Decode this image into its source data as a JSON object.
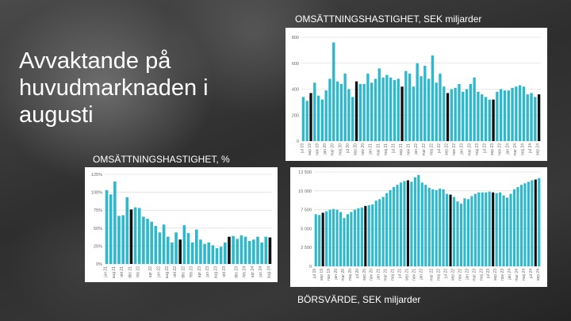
{
  "slide": {
    "title": "Avvaktande på huvudmarknaden i augusti"
  },
  "chart_data": [
    {
      "type": "bar",
      "title": "OMSÄTTNINGSHASTIGHET, SEK miljarder",
      "ylim": [
        0,
        800
      ],
      "yticks": [
        "0",
        "200",
        "400",
        "600",
        "800"
      ],
      "xlabels": [
        "jul 19",
        "sep 19",
        "nov 19",
        "jan 20",
        "mar 20",
        "maj 20",
        "jul 20",
        "sep 20",
        "nov 20",
        "jan 21",
        "mar 21",
        "maj 21",
        "jul 21",
        "sep 21",
        "nov 21",
        "jan 22",
        "mar 22",
        "maj 22",
        "jul 22",
        "sep 22",
        "nov 22",
        "jan 23",
        "mar 23",
        "maj 23",
        "jul 23",
        "sep 23",
        "nov 23",
        "jan 24",
        "mar 24",
        "maj 24",
        "jul 24",
        "sep 24"
      ],
      "values": [
        340,
        310,
        370,
        450,
        350,
        320,
        390,
        480,
        760,
        460,
        440,
        520,
        400,
        340,
        460,
        440,
        440,
        520,
        450,
        480,
        560,
        490,
        510,
        490,
        470,
        480,
        420,
        540,
        520,
        420,
        600,
        500,
        580,
        480,
        660,
        450,
        520,
        420,
        370,
        400,
        410,
        440,
        380,
        400,
        440,
        490,
        380,
        360,
        340,
        320,
        320,
        380,
        400,
        390,
        390,
        410,
        420,
        430,
        420,
        360,
        370,
        340,
        360
      ],
      "highlight": [
        2,
        14,
        26,
        38,
        50,
        62
      ],
      "grid": true
    },
    {
      "type": "bar",
      "title": "OMSÄTTNINGSHASTIGHET, %",
      "ylim": [
        0,
        125
      ],
      "yticks": [
        "0%",
        "25%",
        "50%",
        "75%",
        "100%",
        "125%"
      ],
      "xlabels": [
        "jun 21",
        "aug 21",
        "okt 21",
        "dec 21",
        "feb 22",
        "apr 22",
        "jun 22",
        "aug 22",
        "okt 22",
        "dec 22",
        "feb 23",
        "apr 23",
        "jun 23",
        "aug 23",
        "okt 23",
        "dec 23",
        "feb 24",
        "apr 24",
        "jun 24",
        "aug 24"
      ],
      "values": [
        103,
        97,
        115,
        67,
        68,
        93,
        76,
        79,
        78,
        66,
        63,
        59,
        53,
        44,
        55,
        38,
        30,
        44,
        34,
        54,
        43,
        30,
        48,
        34,
        28,
        30,
        26,
        22,
        24,
        30,
        38,
        39,
        35,
        40,
        38,
        32,
        34,
        38,
        30,
        38,
        37
      ],
      "highlight": [
        6,
        18,
        30,
        40
      ],
      "grid": true
    },
    {
      "type": "bar",
      "title": "BÖRSVÄRDE, SEK miljarder",
      "ylim": [
        0,
        12500
      ],
      "yticks": [
        "0",
        "2 500",
        "5 000",
        "7 500",
        "10 000",
        "12 500"
      ],
      "xlabels": [
        "jul 19",
        "sep 19",
        "nov 19",
        "jan 20",
        "mar 20",
        "maj 20",
        "jul 20",
        "sep 20",
        "nov 20",
        "jan 21",
        "mar 21",
        "maj 21",
        "jul 21",
        "sep 21",
        "nov 21",
        "jan 22",
        "mar 22",
        "maj 22",
        "jul 22",
        "sep 22",
        "nov 22",
        "jan 23",
        "mar 23",
        "maj 23",
        "jul 23",
        "sep 23",
        "nov 23",
        "jan 24",
        "mar 24",
        "maj 24",
        "jul 24",
        "sep 24"
      ],
      "values": [
        6900,
        6800,
        7100,
        7300,
        7500,
        7600,
        7500,
        7200,
        6400,
        6900,
        7200,
        7500,
        7700,
        7800,
        8000,
        8100,
        8200,
        8700,
        8900,
        9200,
        9700,
        10100,
        10500,
        10800,
        11100,
        11300,
        11400,
        11200,
        11800,
        12100,
        11100,
        10800,
        10400,
        10200,
        10100,
        10300,
        10200,
        9600,
        9500,
        9200,
        8600,
        8300,
        9000,
        8900,
        9300,
        9600,
        9800,
        9800,
        9800,
        9900,
        9800,
        9700,
        9800,
        9400,
        9100,
        9600,
        10200,
        10500,
        10800,
        11000,
        11200,
        11400,
        11500,
        11700
      ],
      "highlight": [
        2,
        14,
        26,
        38,
        50,
        62
      ],
      "grid": true
    }
  ]
}
